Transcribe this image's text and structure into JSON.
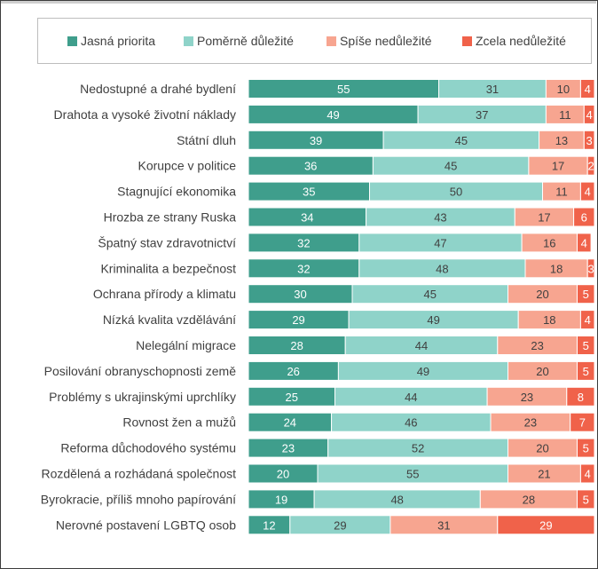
{
  "chart_data": {
    "type": "bar",
    "orientation": "horizontal",
    "stacked": true,
    "percent": true,
    "legend_position": "top",
    "categories": [
      "Nedostupné a drahé bydlení",
      "Drahota a vysoké životní náklady",
      "Státní dluh",
      "Korupce v politice",
      "Stagnující ekonomika",
      "Hrozba ze strany Ruska",
      "Špatný stav zdravotnictví",
      "Kriminalita a bezpečnost",
      "Ochrana přírody a klimatu",
      "Nízká kvalita vzdělávání",
      "Nelegální migrace",
      "Posilování obranyschopnosti země",
      "Problémy s ukrajinskými uprchlíky",
      "Rovnost žen a mužů",
      "Reforma důchodového systému",
      "Rozdělená a rozhádaná společnost",
      "Byrokracie, příliš mnoho papírování",
      "Nerovné postavení LGBTQ osob"
    ],
    "series": [
      {
        "name": "Jasná priorita",
        "color": "#3f9e8c",
        "label_color": "#ffffff",
        "values": [
          55,
          49,
          39,
          36,
          35,
          34,
          32,
          32,
          30,
          29,
          28,
          26,
          25,
          24,
          23,
          20,
          19,
          12
        ]
      },
      {
        "name": "Poměrně důležité",
        "color": "#8fd3c9",
        "label_color": "#404040",
        "values": [
          31,
          37,
          45,
          45,
          50,
          43,
          47,
          48,
          45,
          49,
          44,
          49,
          44,
          46,
          52,
          55,
          48,
          29
        ]
      },
      {
        "name": "Spíše nedůležité",
        "color": "#f7a590",
        "label_color": "#404040",
        "values": [
          10,
          11,
          13,
          17,
          11,
          17,
          16,
          18,
          20,
          18,
          23,
          20,
          23,
          23,
          20,
          21,
          28,
          31
        ]
      },
      {
        "name": "Zcela nedůležité",
        "color": "#f0624a",
        "label_color": "#ffffff",
        "values": [
          4,
          4,
          3,
          2,
          4,
          6,
          4,
          3,
          5,
          4,
          5,
          5,
          8,
          7,
          5,
          4,
          5,
          29
        ]
      }
    ],
    "xlim": [
      0,
      100
    ]
  }
}
